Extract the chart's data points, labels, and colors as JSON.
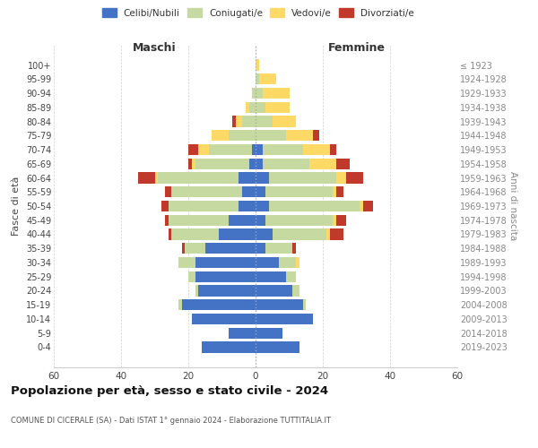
{
  "age_groups": [
    "0-4",
    "5-9",
    "10-14",
    "15-19",
    "20-24",
    "25-29",
    "30-34",
    "35-39",
    "40-44",
    "45-49",
    "50-54",
    "55-59",
    "60-64",
    "65-69",
    "70-74",
    "75-79",
    "80-84",
    "85-89",
    "90-94",
    "95-99",
    "100+"
  ],
  "birth_years": [
    "2019-2023",
    "2014-2018",
    "2009-2013",
    "2004-2008",
    "1999-2003",
    "1994-1998",
    "1989-1993",
    "1984-1988",
    "1979-1983",
    "1974-1978",
    "1969-1973",
    "1964-1968",
    "1959-1963",
    "1954-1958",
    "1949-1953",
    "1944-1948",
    "1939-1943",
    "1934-1938",
    "1929-1933",
    "1924-1928",
    "≤ 1923"
  ],
  "male": {
    "celibi": [
      16,
      8,
      19,
      22,
      17,
      18,
      18,
      15,
      11,
      8,
      5,
      4,
      5,
      2,
      1,
      0,
      0,
      0,
      0,
      0,
      0
    ],
    "coniugati": [
      0,
      0,
      0,
      1,
      1,
      2,
      5,
      6,
      14,
      18,
      21,
      21,
      24,
      16,
      13,
      8,
      4,
      2,
      1,
      0,
      0
    ],
    "vedovi": [
      0,
      0,
      0,
      0,
      0,
      0,
      0,
      0,
      0,
      0,
      0,
      0,
      1,
      1,
      3,
      5,
      2,
      1,
      0,
      0,
      0
    ],
    "divorziati": [
      0,
      0,
      0,
      0,
      0,
      0,
      0,
      1,
      1,
      1,
      2,
      2,
      5,
      1,
      3,
      0,
      1,
      0,
      0,
      0,
      0
    ]
  },
  "female": {
    "nubili": [
      13,
      8,
      17,
      14,
      11,
      9,
      7,
      3,
      5,
      3,
      4,
      3,
      4,
      2,
      2,
      0,
      0,
      0,
      0,
      0,
      0
    ],
    "coniugate": [
      0,
      0,
      0,
      1,
      2,
      3,
      5,
      8,
      16,
      20,
      27,
      20,
      20,
      14,
      12,
      9,
      5,
      3,
      2,
      1,
      0
    ],
    "vedove": [
      0,
      0,
      0,
      0,
      0,
      0,
      1,
      0,
      1,
      1,
      1,
      1,
      3,
      8,
      8,
      8,
      7,
      7,
      8,
      5,
      1
    ],
    "divorziate": [
      0,
      0,
      0,
      0,
      0,
      0,
      0,
      1,
      4,
      3,
      3,
      2,
      5,
      4,
      2,
      2,
      0,
      0,
      0,
      0,
      0
    ]
  },
  "colors": {
    "celibi": "#4472c4",
    "coniugati": "#c5d9a0",
    "vedovi": "#ffd966",
    "divorziati": "#c0392b"
  },
  "xlim": 60,
  "title": "Popolazione per età, sesso e stato civile - 2024",
  "subtitle": "COMUNE DI CICERALE (SA) - Dati ISTAT 1° gennaio 2024 - Elaborazione TUTTITALIA.IT",
  "ylabel_left": "Fasce di età",
  "ylabel_right": "Anni di nascita",
  "xlabel_male": "Maschi",
  "xlabel_female": "Femmine",
  "legend_labels": [
    "Celibi/Nubili",
    "Coniugati/e",
    "Vedovi/e",
    "Divorziati/e"
  ],
  "background_color": "#ffffff",
  "grid_color": "#cccccc"
}
